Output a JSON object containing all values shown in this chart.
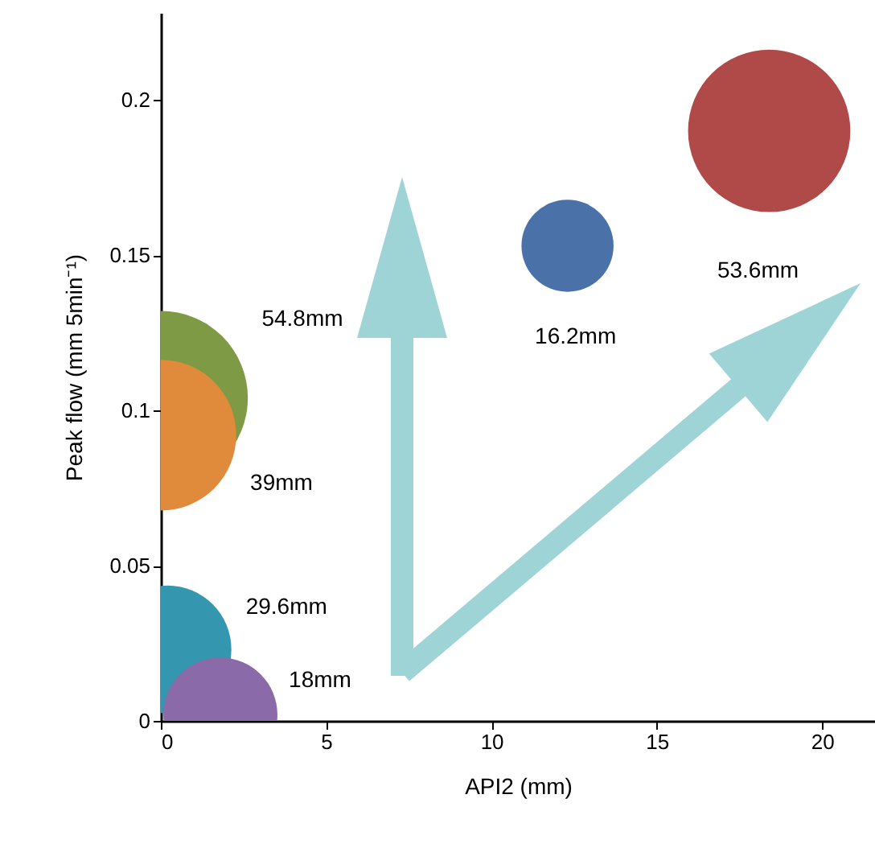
{
  "chart_data": {
    "type": "bubble",
    "xlabel": "API2 (mm)",
    "ylabel": "Peak flow (mm 5min⁻¹)",
    "x": [
      18.4,
      12.3,
      0,
      0,
      0.2,
      1.8
    ],
    "values": [
      0.19,
      0.153,
      0.104,
      0.092,
      0.023,
      0.002
    ],
    "sizes": [
      0.87,
      0.28,
      1,
      0.75,
      0.54,
      0.43
    ],
    "colors": [
      "#b04a48",
      "#4a72a8",
      "#7f9a44",
      "#e08a3c",
      "#3596b0",
      "#8a6aa8"
    ],
    "xlim": [
      0,
      21.6
    ],
    "ylim": [
      0,
      0.228
    ],
    "xticks": [
      0,
      5,
      10,
      15,
      20
    ],
    "yticks": [
      0,
      0.05,
      0.1,
      0.15,
      0.2
    ],
    "annotations": [
      "53.6mm",
      "16.2mm",
      "54.8mm",
      "39mm",
      "29.6mm",
      "18mm"
    ]
  }
}
